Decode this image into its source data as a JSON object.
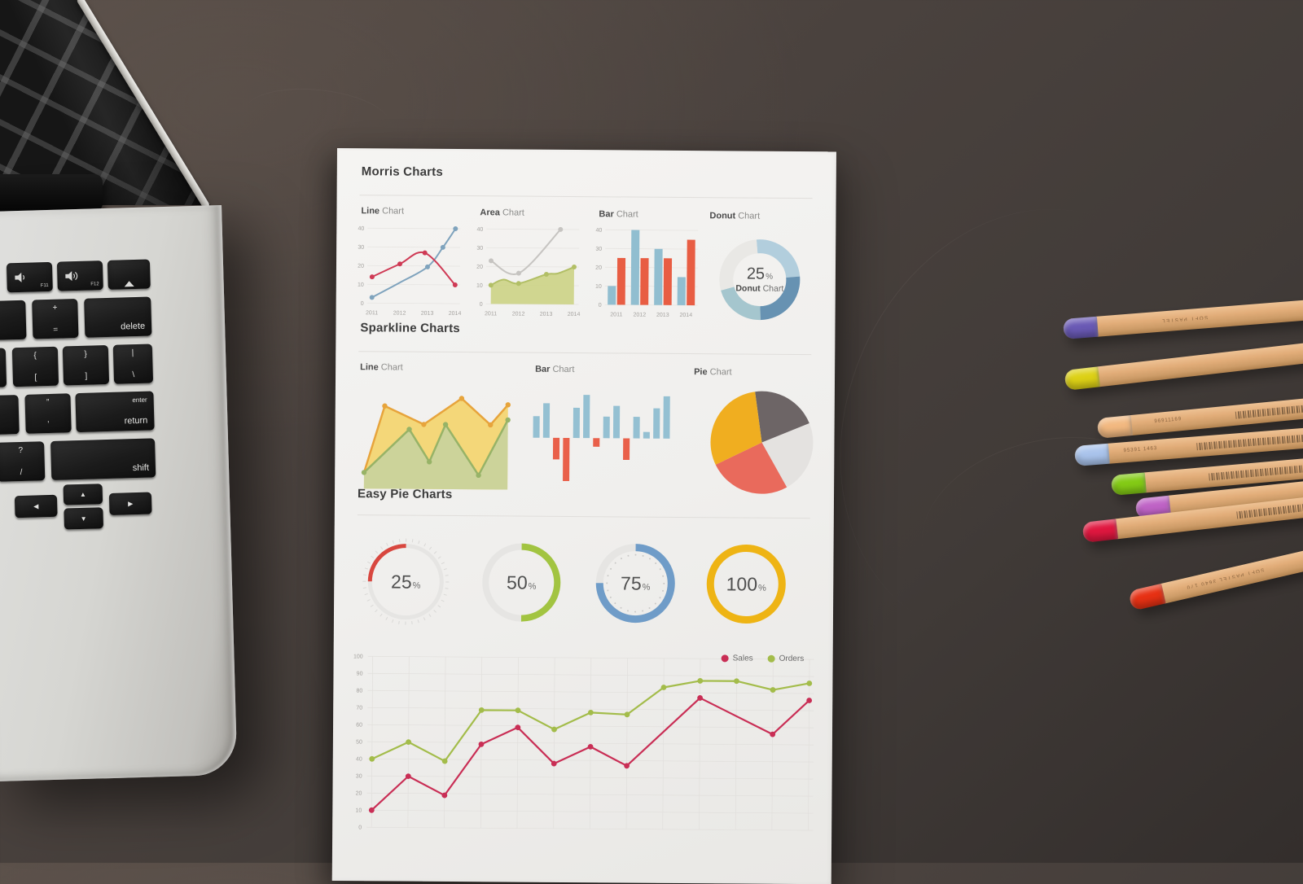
{
  "scene": {
    "desk_color": "#4a423e",
    "paper_color": "#f0efed"
  },
  "paper": {
    "headings": {
      "morris": "Morris Charts",
      "sparkline": "Sparkline Charts",
      "easy": "Easy Pie Charts"
    },
    "chart_titles": {
      "line": {
        "b": "Line",
        "r": " Chart"
      },
      "area": {
        "b": "Area",
        "r": " Chart"
      },
      "bar": {
        "b": "Bar",
        "r": " Chart"
      },
      "donut": {
        "b": "Donut",
        "r": " Chart"
      },
      "sline": {
        "b": "Line",
        "r": " Chart"
      },
      "sbar": {
        "b": "Bar",
        "r": " Chart"
      },
      "spie": {
        "b": "Pie",
        "r": " Chart"
      }
    }
  },
  "legend": [
    {
      "label": "Sales",
      "color": "#c92e55"
    },
    {
      "label": "Orders",
      "color": "#a3bc4a"
    }
  ],
  "chart_data": {
    "morris_line": {
      "type": "line",
      "x_labels": [
        "2011",
        "2012",
        "2013",
        "2014"
      ],
      "ylim": [
        0,
        40
      ],
      "yticks": [
        0,
        10,
        20,
        30,
        40
      ],
      "series": [
        {
          "name": "blue",
          "color": "#7fa3bd",
          "points": [
            [
              0,
              3
            ],
            [
              1,
              11
            ],
            [
              2,
              19.5
            ],
            [
              2.55,
              30
            ],
            [
              3,
              40
            ]
          ],
          "dots": [
            1,
            0,
            1,
            1,
            1
          ]
        },
        {
          "name": "red",
          "color": "#cf3a55",
          "points": [
            [
              0,
              14
            ],
            [
              1,
              21
            ],
            [
              1.9,
              27
            ],
            [
              3,
              10
            ]
          ],
          "dots": [
            1,
            1,
            1,
            1
          ]
        }
      ]
    },
    "morris_area": {
      "type": "area",
      "x_labels": [
        "2011",
        "2012",
        "2013",
        "2014"
      ],
      "ylim": [
        0,
        40
      ],
      "yticks": [
        0,
        10,
        20,
        30,
        40
      ],
      "series": [
        {
          "name": "gray",
          "color": "#c6c4c1",
          "points": [
            [
              0,
              23
            ],
            [
              1,
              16.5
            ],
            [
              2.5,
              40
            ]
          ],
          "dots": [
            1,
            1,
            1
          ]
        },
        {
          "name": "olive",
          "color": "#b2bf66",
          "fill": "#cdd48a",
          "points": [
            [
              0,
              10
            ],
            [
              0.45,
              13
            ],
            [
              1,
              11
            ],
            [
              2,
              16
            ],
            [
              2.4,
              16.5
            ],
            [
              3,
              20
            ]
          ],
          "dots": [
            1,
            0,
            1,
            1,
            0,
            1
          ]
        }
      ]
    },
    "morris_bar": {
      "type": "bar",
      "categories": [
        "2011",
        "2012",
        "2013",
        "2014"
      ],
      "ylim": [
        0,
        40
      ],
      "yticks": [
        0,
        10,
        20,
        30,
        40
      ],
      "series": [
        {
          "name": "blue",
          "color": "#91bed0",
          "values": [
            10,
            40,
            30,
            15
          ]
        },
        {
          "name": "red",
          "color": "#e85d43",
          "values": [
            25,
            25,
            25,
            35
          ]
        }
      ]
    },
    "morris_donut": {
      "type": "donut",
      "center_value": "25",
      "center_unit": "%",
      "center_label_bold": "Donut",
      "center_label_rest": " Chart",
      "start_deg": -5,
      "segments": [
        {
          "pct": 25,
          "color": "#b2cedd"
        },
        {
          "pct": 26,
          "color": "#6792b2"
        },
        {
          "pct": 21,
          "color": "#a5c6ce"
        },
        {
          "pct": 28,
          "color": "#e9e8e5"
        }
      ]
    },
    "spark_line": {
      "type": "area",
      "ymax": 10,
      "series": [
        {
          "name": "yellow",
          "line": "#e7a43c",
          "fill": "#f3d572",
          "x": [
            1,
            15,
            42,
            68,
            88,
            100
          ],
          "y": [
            1.6,
            8.2,
            6.4,
            9.0,
            6.4,
            8.4
          ],
          "dots": [
            0,
            1,
            1,
            1,
            1,
            1
          ]
        },
        {
          "name": "green",
          "line": "#97b367",
          "fill": "#c9d39c",
          "x": [
            1,
            32,
            46,
            57,
            80,
            100
          ],
          "y": [
            1.6,
            5.9,
            2.7,
            6.4,
            1.4,
            6.9
          ],
          "dots": [
            1,
            1,
            1,
            1,
            1,
            1
          ]
        }
      ]
    },
    "spark_bar": {
      "type": "bar",
      "positive_color": "#94c0d2",
      "negative_color": "#e9604a",
      "values": [
        5,
        8,
        -5,
        -10,
        7,
        10,
        -2,
        5,
        7.5,
        -5,
        5,
        1.5,
        7,
        9.8
      ]
    },
    "spark_pie": {
      "type": "pie",
      "start_deg": -8,
      "slices": [
        {
          "pct": 21,
          "color": "#6d6566"
        },
        {
          "pct": 23,
          "color": "#e4e2e0"
        },
        {
          "pct": 26,
          "color": "#e96a5c"
        },
        {
          "pct": 30,
          "color": "#f0ae20"
        }
      ]
    },
    "easy_pies": [
      {
        "value": "25",
        "unit": "%",
        "color": "#d8473f",
        "dir": -1,
        "deco": "outer-ticks",
        "stroke": 5
      },
      {
        "value": "50",
        "unit": "%",
        "color": "#a2c441",
        "dir": 1,
        "deco": "none",
        "stroke": 8
      },
      {
        "value": "75",
        "unit": "%",
        "color": "#6f9cc8",
        "dir": 1,
        "deco": "inner-dots",
        "stroke": 9
      },
      {
        "value": "100",
        "unit": "%",
        "color": "#eeb414",
        "dir": 1,
        "deco": "none",
        "stroke": 9
      }
    ],
    "big_line": {
      "type": "line",
      "yticks": [
        0,
        10,
        20,
        30,
        40,
        50,
        60,
        70,
        80,
        90,
        100
      ],
      "x_points": 13,
      "series": [
        {
          "name": "Orders",
          "color": "#a3bc4a",
          "points": [
            [
              0,
              40
            ],
            [
              1,
              50
            ],
            [
              2,
              39
            ],
            [
              3,
              69
            ],
            [
              4,
              69
            ],
            [
              5,
              58
            ],
            [
              6,
              68
            ],
            [
              7,
              67
            ],
            [
              8,
              83
            ],
            [
              9,
              87
            ],
            [
              10,
              87
            ],
            [
              11,
              82
            ],
            [
              12,
              86
            ]
          ]
        },
        {
          "name": "Sales",
          "color": "#c92e55",
          "points": [
            [
              0,
              10
            ],
            [
              1,
              30
            ],
            [
              2,
              19
            ],
            [
              3,
              49
            ],
            [
              4,
              59
            ],
            [
              5,
              38
            ],
            [
              6,
              48
            ],
            [
              7,
              37
            ],
            [
              9,
              77
            ],
            [
              11,
              56
            ],
            [
              12,
              76
            ]
          ]
        }
      ]
    }
  },
  "keyboard": {
    "f11": "F11",
    "f12": "F12",
    "minus_top": "-",
    "minus_bottom": "-",
    "plus_top": "+",
    "equals_bottom": "=",
    "delete": "delete",
    "brace_l_top": "{",
    "bracket_l_bottom": "[",
    "brace_r_top": "}",
    "bracket_r_bottom": "]",
    "pipe_top": "|",
    "backslash_bottom": "\\",
    "quote_top": "”",
    "quote_bottom": "’",
    "enter_small": "enter",
    "return_label": "return",
    "question_top": "?",
    "slash_bottom": "/",
    "shift": "shift",
    "arrow_left": "◀",
    "arrow_up": "▲",
    "arrow_down": "▼",
    "arrow_right": "▶"
  },
  "pencils": [
    {
      "name": "purple",
      "cap": "#6a5ab5",
      "marking": "SOFT PASTEL"
    },
    {
      "name": "yellow",
      "cap": "#ddd116",
      "marking": ""
    },
    {
      "name": "peach",
      "cap": "#f2b981",
      "marking": "96911169"
    },
    {
      "name": "periwinkle",
      "cap": "#aac4ec",
      "marking": "95391 1463"
    },
    {
      "name": "green",
      "cap": "#84cb16",
      "marking": ""
    },
    {
      "name": "orchid",
      "cap": "#bf63c6",
      "marking": ""
    },
    {
      "name": "crimson",
      "cap": "#e0173f",
      "marking": ""
    },
    {
      "name": "red",
      "cap": "#e73114",
      "marking": "SOFT PASTEL 3640 170"
    }
  ]
}
